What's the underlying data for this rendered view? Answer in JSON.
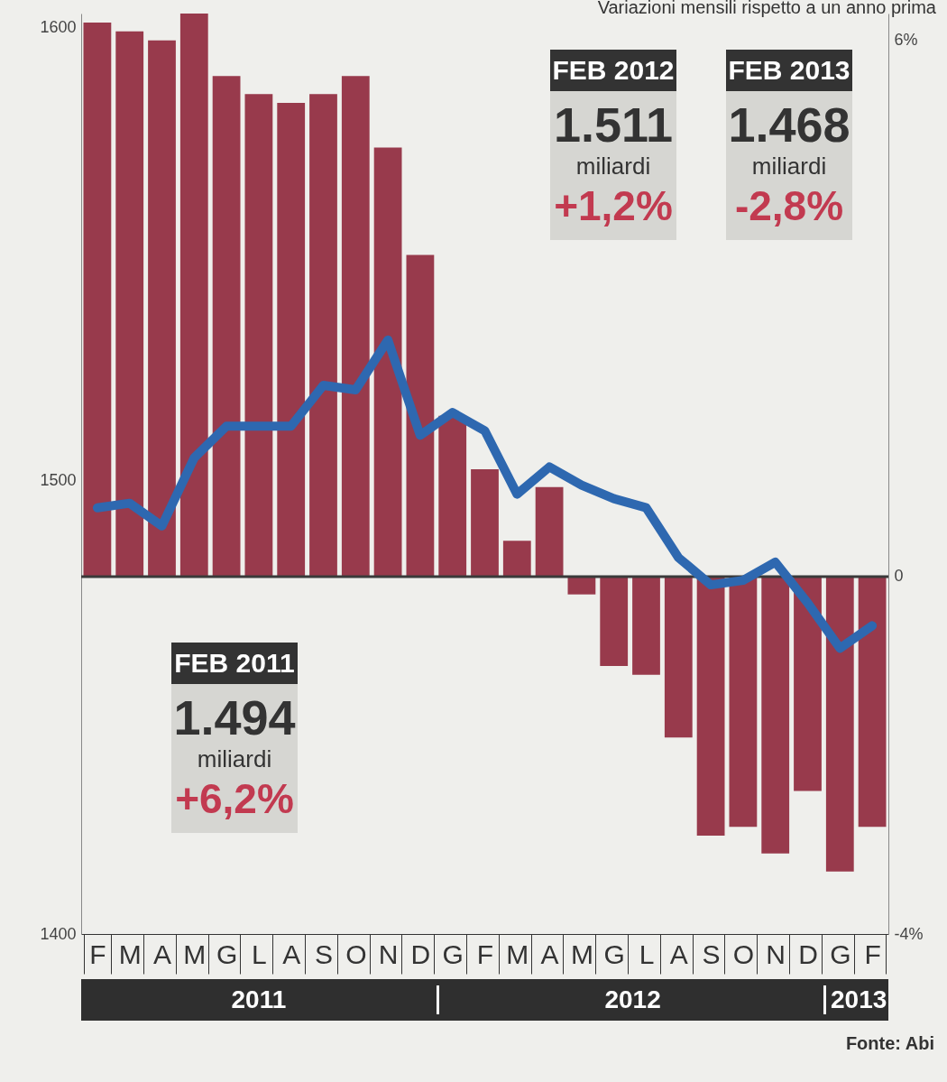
{
  "chart_data": {
    "type": "bar",
    "categories": [
      "F",
      "M",
      "A",
      "M",
      "G",
      "L",
      "A",
      "S",
      "O",
      "N",
      "D",
      "G",
      "F",
      "M",
      "A",
      "M",
      "G",
      "L",
      "A",
      "S",
      "O",
      "N",
      "D",
      "G",
      "F"
    ],
    "series": [
      {
        "axis": "y2",
        "color": "#983a4c",
        "values": [
          6.2,
          6.1,
          6.0,
          6.3,
          5.6,
          5.4,
          5.3,
          5.4,
          5.6,
          4.8,
          3.6,
          1.8,
          1.2,
          0.4,
          1.0,
          -0.2,
          -1.0,
          -1.1,
          -1.8,
          -2.9,
          -2.8,
          -3.1,
          -2.4,
          -3.3,
          -2.8
        ]
      },
      {
        "type": "line",
        "axis": "y",
        "color": "#2e68b0",
        "values": [
          1494,
          1495,
          1490,
          1505,
          1512,
          1512,
          1512,
          1521,
          1520,
          1531,
          1510,
          1515,
          1511,
          1497,
          1503,
          1499,
          1496,
          1494,
          1483,
          1477,
          1478,
          1482,
          1473,
          1463,
          1468
        ]
      }
    ],
    "ylim": [
      1400,
      1603
    ],
    "yticks": [
      1400,
      1500,
      1600
    ],
    "y2lim": [
      -4,
      6.3
    ],
    "y2ticks": [
      {
        "value": -4,
        "label": "-4%"
      },
      0,
      {
        "value": 6,
        "label": "6%"
      }
    ],
    "ref_lines": [
      {
        "axis": "y2",
        "value": 0,
        "color": "#3a3a3a"
      }
    ],
    "grid": false,
    "annotations": [
      "Variazioni mensili rispetto a un anno prima",
      "FEB 2011",
      "1.494",
      "miliardi",
      "+6,2%",
      "FEB 2012",
      "1.511",
      "miliardi",
      "+1,2%",
      "FEB 2013",
      "1.468",
      "miliardi",
      "-2,8%",
      "2011",
      "2012",
      "2013",
      "Fonte: Abi"
    ]
  }
}
